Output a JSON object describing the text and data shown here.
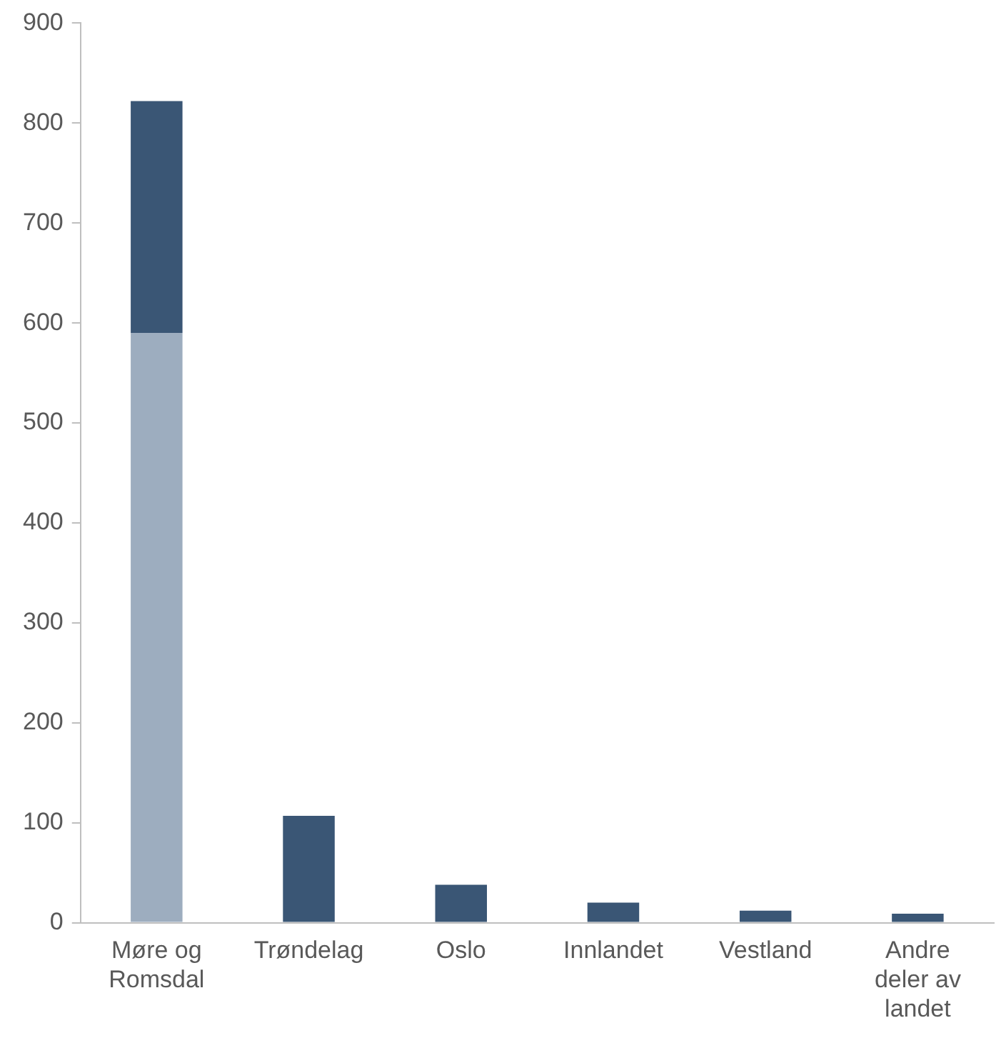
{
  "chart_data": {
    "type": "bar",
    "stacked": true,
    "categories": [
      "Møre og Romsdal",
      "Trøndelag",
      "Oslo",
      "Innlandet",
      "Vestland",
      "Andre deler av landet"
    ],
    "series": [
      {
        "color": "#9dadbf",
        "values": [
          590,
          null,
          null,
          null,
          null,
          null
        ]
      },
      {
        "color": "#3a5675",
        "values": [
          232,
          107,
          38,
          20,
          12,
          9
        ]
      }
    ],
    "ylim": [
      0,
      900
    ],
    "yticks": [
      0,
      100,
      200,
      300,
      400,
      500,
      600,
      700,
      800,
      900
    ],
    "grid": false,
    "legend": false
  }
}
